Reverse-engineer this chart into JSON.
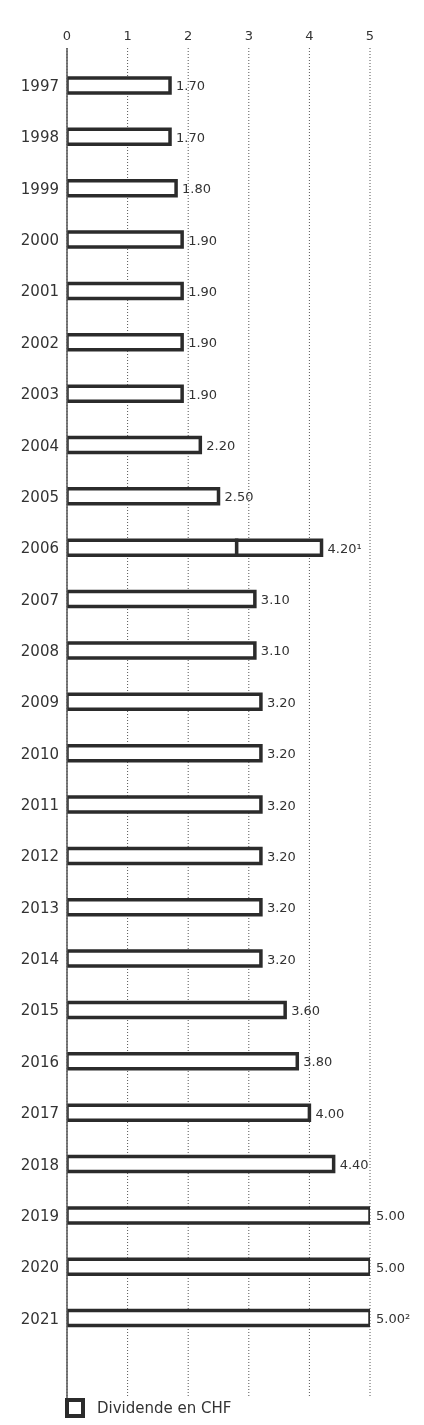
{
  "chart_data": {
    "type": "bar",
    "orientation": "horizontal",
    "stacked": true,
    "categories": [
      "1997",
      "1998",
      "1999",
      "2000",
      "2001",
      "2002",
      "2003",
      "2004",
      "2005",
      "2006",
      "2007",
      "2008",
      "2009",
      "2010",
      "2011",
      "2012",
      "2013",
      "2014",
      "2015",
      "2016",
      "2017",
      "2018",
      "2019",
      "2020",
      "2021"
    ],
    "series": [
      {
        "name": "Dividende en CHF",
        "color": "#2b2b2b",
        "values": [
          1.7,
          1.7,
          1.8,
          1.9,
          1.9,
          1.9,
          1.9,
          2.2,
          2.5,
          2.8,
          3.1,
          3.1,
          3.2,
          3.2,
          3.2,
          3.2,
          3.2,
          3.2,
          3.6,
          3.8,
          4.0,
          4.4,
          5.0,
          5.0,
          5.0
        ],
        "value_labels": [
          "1.70",
          "1.70",
          "1.80",
          "1.90",
          "1.90",
          "1.90",
          "1.90",
          "2.20",
          "2.50",
          null,
          "3.10",
          "3.10",
          "3.20",
          "3.20",
          "3.20",
          "3.20",
          "3.20",
          "3.20",
          "3.60",
          "3.80",
          "4.00",
          "4.40",
          "5.00",
          "5.00",
          "5.00²"
        ]
      },
      {
        "color": "#2b2b2b",
        "values": [
          null,
          null,
          null,
          null,
          null,
          null,
          null,
          null,
          null,
          1.4,
          null,
          null,
          null,
          null,
          null,
          null,
          null,
          null,
          null,
          null,
          null,
          null,
          null,
          null,
          null
        ]
      }
    ],
    "totals": [
      null,
      null,
      null,
      null,
      null,
      null,
      null,
      null,
      null,
      "4.20¹",
      null,
      null,
      null,
      null,
      null,
      null,
      null,
      null,
      null,
      null,
      null,
      null,
      null,
      null,
      null
    ],
    "xlim": [
      0,
      5
    ],
    "xticks": [
      0,
      1,
      2,
      3,
      4,
      5
    ],
    "grid": "x",
    "legend": "bottom"
  }
}
